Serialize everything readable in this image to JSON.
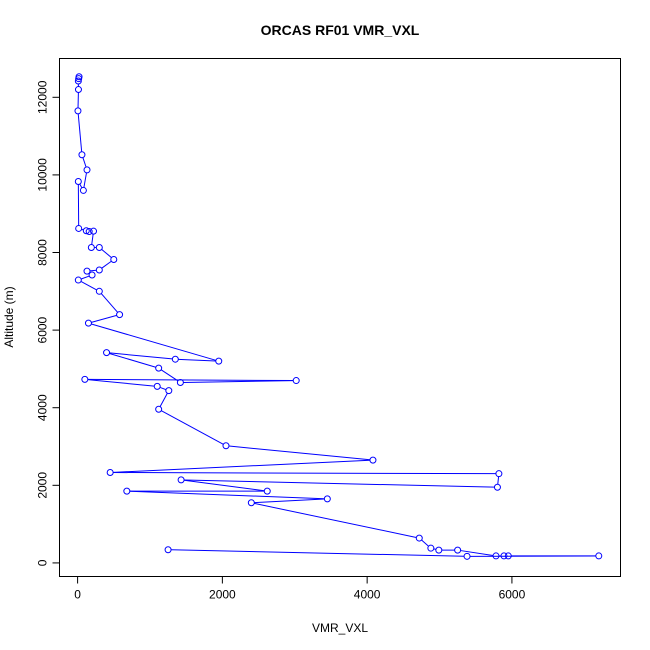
{
  "chart_data": {
    "type": "line",
    "title": "ORCAS RF01 VMR_VXL",
    "xlabel": "VMR_VXL",
    "ylabel": "Altitude (m)",
    "xlim": [
      -250,
      7500
    ],
    "ylim": [
      -350,
      13000
    ],
    "xticks": [
      0,
      2000,
      4000,
      6000
    ],
    "yticks": [
      0,
      2000,
      4000,
      6000,
      8000,
      10000,
      12000
    ],
    "xtick_labels": [
      "0",
      "2000",
      "4000",
      "6000"
    ],
    "ytick_labels": [
      "0",
      "2000",
      "4000",
      "6000",
      "8000",
      "10000",
      "12000"
    ],
    "series": [
      {
        "color": "#0000ff",
        "marker": "open-circle",
        "points": [
          [
            20,
            12530
          ],
          [
            15,
            12480
          ],
          [
            10,
            12420
          ],
          [
            12,
            12200
          ],
          [
            5,
            11650
          ],
          [
            60,
            10520
          ],
          [
            130,
            10130
          ],
          [
            80,
            9600
          ],
          [
            10,
            9830
          ],
          [
            15,
            8620
          ],
          [
            120,
            8560
          ],
          [
            160,
            8540
          ],
          [
            220,
            8550
          ],
          [
            190,
            8130
          ],
          [
            300,
            8130
          ],
          [
            500,
            7820
          ],
          [
            300,
            7550
          ],
          [
            130,
            7520
          ],
          [
            200,
            7420
          ],
          [
            10,
            7290
          ],
          [
            300,
            7000
          ],
          [
            580,
            6400
          ],
          [
            150,
            6180
          ],
          [
            1950,
            5200
          ],
          [
            1350,
            5250
          ],
          [
            400,
            5420
          ],
          [
            1120,
            5020
          ],
          [
            1420,
            4650
          ],
          [
            3020,
            4700
          ],
          [
            100,
            4730
          ],
          [
            1100,
            4550
          ],
          [
            1260,
            4440
          ],
          [
            1120,
            3960
          ],
          [
            2050,
            3020
          ],
          [
            4080,
            2650
          ],
          [
            450,
            2330
          ],
          [
            5820,
            2300
          ],
          [
            5800,
            1950
          ],
          [
            1430,
            2140
          ],
          [
            2620,
            1850
          ],
          [
            680,
            1850
          ],
          [
            3450,
            1650
          ],
          [
            2400,
            1550
          ],
          [
            4720,
            640
          ],
          [
            4880,
            380
          ],
          [
            4990,
            330
          ],
          [
            5250,
            330
          ],
          [
            5780,
            180
          ],
          [
            5890,
            180
          ],
          [
            5950,
            180
          ],
          [
            7200,
            180
          ],
          [
            5380,
            170
          ],
          [
            1250,
            340
          ]
        ]
      }
    ]
  }
}
